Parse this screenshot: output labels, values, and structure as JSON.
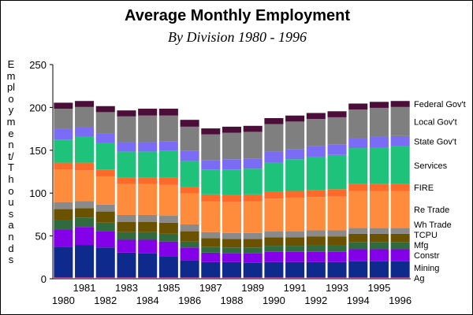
{
  "chart_data": {
    "type": "bar",
    "stacked": true,
    "title": "Average Monthly Employment",
    "subtitle": "By Division 1980 - 1996",
    "ylabel": "Employment/Thousands",
    "ylim": [
      0,
      250
    ],
    "yticks": [
      0,
      50,
      100,
      150,
      200,
      250
    ],
    "categories": [
      "1980",
      "1981",
      "1982",
      "1983",
      "1984",
      "1985",
      "1986",
      "1987",
      "1988",
      "1989",
      "1990",
      "1991",
      "1992",
      "1993",
      "1994",
      "1995",
      "1996"
    ],
    "x_tick_labels_upper": [
      "1981",
      "1983",
      "1985",
      "1987",
      "1989",
      "1991",
      "1993",
      "1995"
    ],
    "x_tick_labels_lower": [
      "1980",
      "1982",
      "1984",
      "1986",
      "1988",
      "1990",
      "1992",
      "1994",
      "1996"
    ],
    "series": [
      {
        "name": "Ag",
        "color": "#e8287c",
        "values": [
          1.5,
          1.5,
          1.5,
          1.5,
          1.5,
          1.5,
          1.5,
          1.5,
          1.5,
          1.5,
          1.5,
          1.5,
          1.5,
          1.5,
          1.5,
          1.5,
          1.5
        ]
      },
      {
        "name": "Mining",
        "color": "#0e2a8c",
        "values": [
          36,
          38,
          35,
          29,
          28,
          25,
          20,
          18,
          18,
          17,
          18,
          18,
          18,
          18,
          19,
          19,
          19
        ]
      },
      {
        "name": "Constr",
        "color": "#8400e8",
        "values": [
          20,
          21,
          19,
          15,
          16,
          17,
          15,
          11,
          10,
          11,
          12,
          12,
          12,
          12,
          14,
          14,
          14
        ]
      },
      {
        "name": "Mfg",
        "color": "#2f6b3e",
        "values": [
          11,
          11,
          10,
          9,
          9,
          9,
          7,
          7,
          7,
          7,
          7,
          7,
          8,
          8,
          8,
          8,
          8
        ]
      },
      {
        "name": "TCPU",
        "color": "#6b5200",
        "values": [
          13,
          11,
          13,
          12,
          12,
          13,
          12,
          10,
          10,
          10,
          10,
          10,
          10,
          10,
          10,
          10,
          10
        ]
      },
      {
        "name": "Wh Trade",
        "color": "#8a8a8a",
        "values": [
          8,
          8,
          8,
          8,
          8,
          8,
          8,
          7,
          7,
          7,
          7,
          7,
          7,
          7,
          7,
          7,
          7
        ]
      },
      {
        "name": "Re Trade",
        "color": "#ff8c3c",
        "values": [
          38,
          36,
          33,
          36,
          36,
          36,
          36,
          36,
          36,
          37,
          38,
          39,
          39,
          40,
          43,
          43,
          43
        ]
      },
      {
        "name": "FIRE",
        "color": "#ff6a2a",
        "values": [
          8,
          9,
          8,
          8,
          8,
          9,
          8,
          8,
          8,
          8,
          8,
          8,
          8,
          8,
          8,
          8,
          8
        ]
      },
      {
        "name": "Services",
        "color": "#1ec27a",
        "values": [
          27,
          30,
          31,
          30,
          30,
          31,
          30,
          29,
          30,
          30,
          34,
          37,
          39,
          40,
          42,
          43,
          44
        ]
      },
      {
        "name": "State Gov't",
        "color": "#7b6cf5",
        "values": [
          13,
          11,
          11,
          11,
          11,
          11,
          12,
          11,
          12,
          12,
          13,
          12,
          12,
          12,
          12,
          12,
          12
        ]
      },
      {
        "name": "Local Gov't",
        "color": "#7f7f7f",
        "values": [
          23,
          24,
          25,
          30,
          31,
          30,
          28,
          30,
          31,
          31,
          32,
          32,
          32,
          32,
          33,
          34,
          34
        ]
      },
      {
        "name": "Federal Gov't",
        "color": "#4a0e38",
        "values": [
          7,
          7,
          7,
          7,
          8,
          8,
          8,
          7,
          7,
          7,
          7,
          7,
          7,
          7,
          7,
          7,
          7
        ]
      }
    ]
  }
}
